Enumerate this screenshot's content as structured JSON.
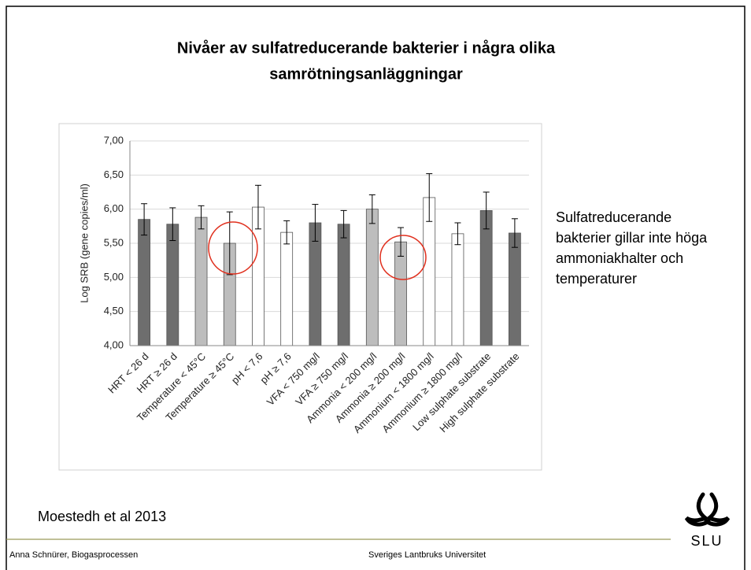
{
  "slide": {
    "side_text": [
      "Sulfatreducerande",
      "bakterier gillar inte höga",
      "ammoniakhalter och",
      "temperaturer"
    ],
    "reference": "Moestedh et al 2013",
    "footer_left": "Anna Schnürer, Biogasprocessen",
    "footer_center": "Sveriges Lantbruks Universitet",
    "logo_text": "SLU"
  },
  "chart_data": {
    "type": "bar",
    "title": [
      "Nivåer av sulfatreducerande bakterier i några olika",
      "samrötningsanläggningar"
    ],
    "y_label": "Log SRB (gene copies/ml)",
    "categories": [
      "HRT < 26 d",
      "HRT ≥ 26 d",
      "Temperature < 45°C",
      "Temperature ≥ 45°C",
      "pH < 7,6",
      "pH ≥ 7,6",
      "VFA < 750 mg/l",
      "VFA ≥ 750 mg/l",
      "Ammonia < 200 mg/l",
      "Ammonia ≥ 200 mg/l",
      "Ammonium < 1800 mg/l",
      "Ammonium ≥ 1800 mg/l",
      "Low sulphate substrate",
      "High sulphate substrate"
    ],
    "values": [
      5.85,
      5.78,
      5.88,
      5.5,
      6.03,
      5.66,
      5.8,
      5.78,
      6.0,
      5.52,
      6.17,
      5.64,
      5.98,
      5.65
    ],
    "errors": [
      0.23,
      0.24,
      0.17,
      0.46,
      0.32,
      0.17,
      0.27,
      0.2,
      0.21,
      0.21,
      0.35,
      0.16,
      0.27,
      0.21
    ],
    "colors": [
      "#6e6e6e",
      "#6e6e6e",
      "#bdbdbd",
      "#bdbdbd",
      "#ffffff",
      "#ffffff",
      "#6e6e6e",
      "#6e6e6e",
      "#bdbdbd",
      "#bdbdbd",
      "#ffffff",
      "#ffffff",
      "#6e6e6e",
      "#6e6e6e"
    ],
    "ylim": [
      4,
      7
    ],
    "yticks": [
      {
        "value": 4,
        "label": "4,00"
      },
      {
        "value": 4.5,
        "label": "4,50"
      },
      {
        "value": 5,
        "label": "5,00"
      },
      {
        "value": 5.5,
        "label": "5,50"
      },
      {
        "value": 6,
        "label": "6,00"
      },
      {
        "value": 6.5,
        "label": "6,50"
      },
      {
        "value": 7,
        "label": "7,00"
      }
    ],
    "grid": true
  }
}
